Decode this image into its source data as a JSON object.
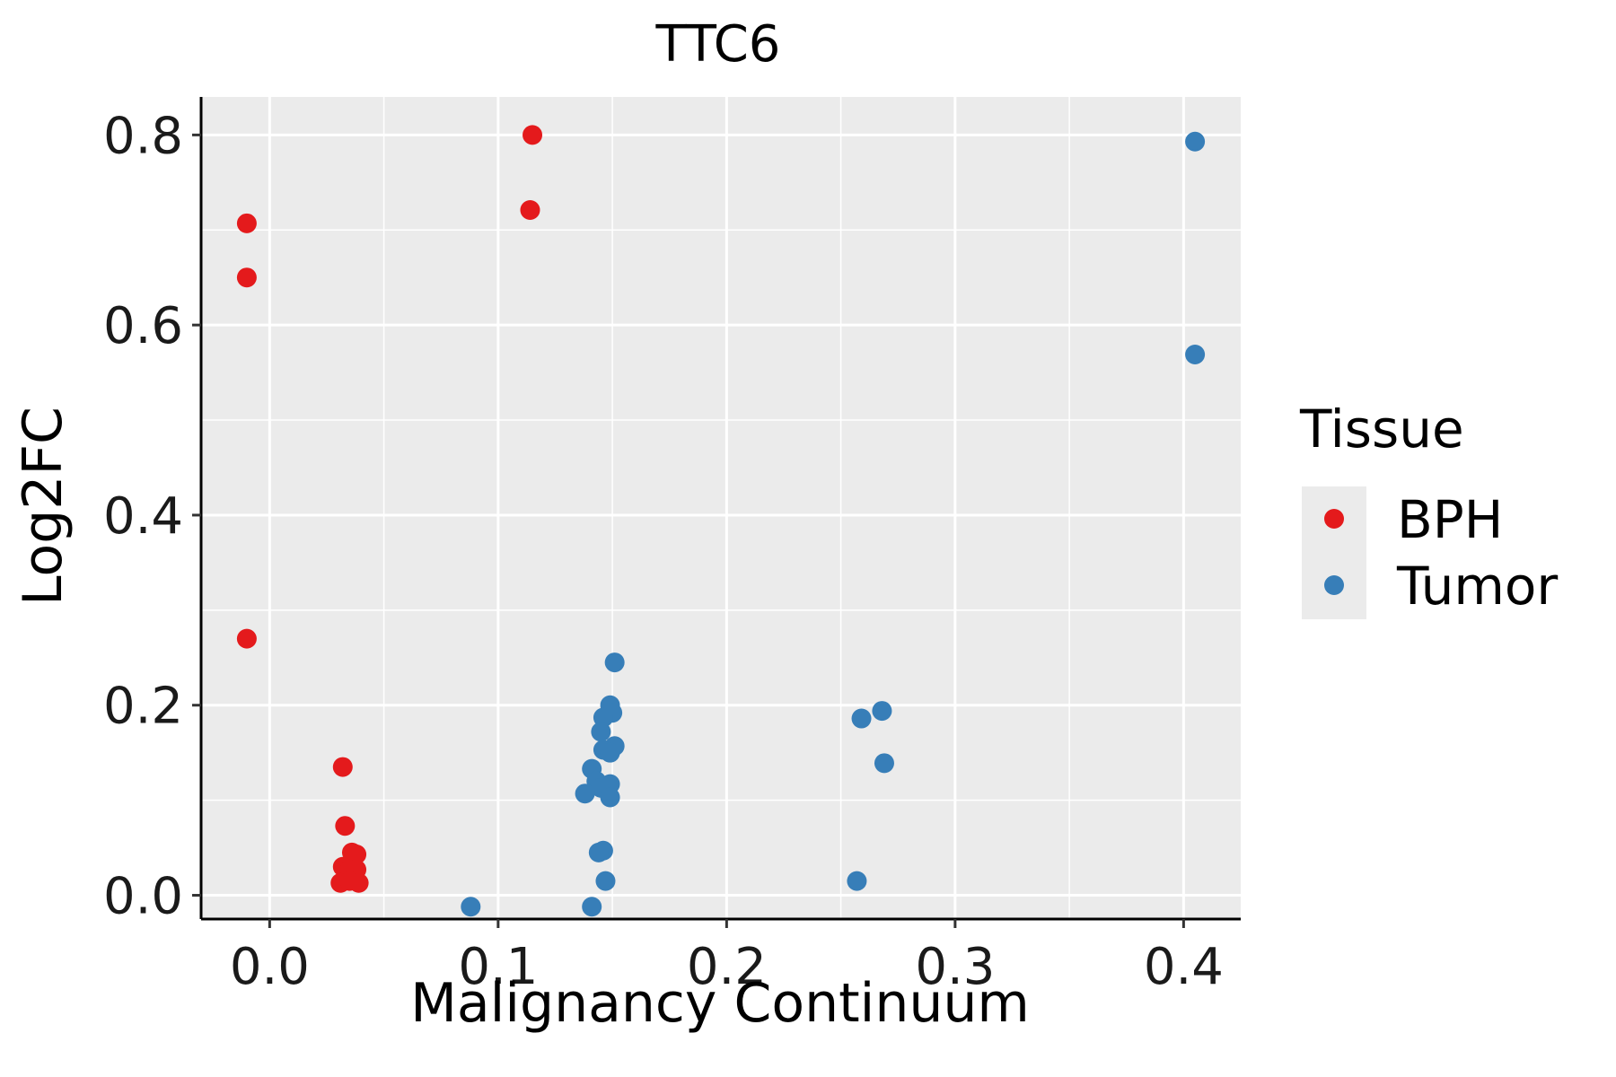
{
  "chart_data": {
    "type": "scatter",
    "title": "TTC6",
    "xlabel": "Malignancy Continuum",
    "ylabel": "Log2FC",
    "xlim": [
      -0.03,
      0.425
    ],
    "ylim": [
      -0.025,
      0.84
    ],
    "x_ticks": [
      0.0,
      0.1,
      0.2,
      0.3,
      0.4
    ],
    "x_tick_labels": [
      "0.0",
      "0.1",
      "0.2",
      "0.3",
      "0.4"
    ],
    "y_ticks": [
      0.0,
      0.2,
      0.4,
      0.6,
      0.8
    ],
    "y_tick_labels": [
      "0.0",
      "0.2",
      "0.4",
      "0.6",
      "0.8"
    ],
    "grid": true,
    "legend": {
      "title": "Tissue",
      "position": "right",
      "entries": [
        "BPH",
        "Tumor"
      ]
    },
    "series": [
      {
        "name": "BPH",
        "color": "#E41A1C",
        "points": [
          {
            "x": -0.01,
            "y": 0.707
          },
          {
            "x": -0.01,
            "y": 0.65
          },
          {
            "x": -0.01,
            "y": 0.27
          },
          {
            "x": 0.115,
            "y": 0.8
          },
          {
            "x": 0.114,
            "y": 0.721
          },
          {
            "x": 0.032,
            "y": 0.135
          },
          {
            "x": 0.033,
            "y": 0.073
          },
          {
            "x": 0.036,
            "y": 0.045
          },
          {
            "x": 0.038,
            "y": 0.043
          },
          {
            "x": 0.032,
            "y": 0.03
          },
          {
            "x": 0.035,
            "y": 0.027
          },
          {
            "x": 0.038,
            "y": 0.027
          },
          {
            "x": 0.031,
            "y": 0.013
          },
          {
            "x": 0.035,
            "y": 0.015
          },
          {
            "x": 0.039,
            "y": 0.013
          }
        ]
      },
      {
        "name": "Tumor",
        "color": "#377EB8",
        "points": [
          {
            "x": 0.405,
            "y": 0.793
          },
          {
            "x": 0.405,
            "y": 0.569
          },
          {
            "x": 0.151,
            "y": 0.245
          },
          {
            "x": 0.149,
            "y": 0.2
          },
          {
            "x": 0.15,
            "y": 0.192
          },
          {
            "x": 0.146,
            "y": 0.187
          },
          {
            "x": 0.145,
            "y": 0.172
          },
          {
            "x": 0.151,
            "y": 0.157
          },
          {
            "x": 0.146,
            "y": 0.153
          },
          {
            "x": 0.149,
            "y": 0.15
          },
          {
            "x": 0.141,
            "y": 0.133
          },
          {
            "x": 0.143,
            "y": 0.12
          },
          {
            "x": 0.149,
            "y": 0.117
          },
          {
            "x": 0.145,
            "y": 0.113
          },
          {
            "x": 0.138,
            "y": 0.107
          },
          {
            "x": 0.149,
            "y": 0.103
          },
          {
            "x": 0.146,
            "y": 0.047
          },
          {
            "x": 0.144,
            "y": 0.045
          },
          {
            "x": 0.147,
            "y": 0.015
          },
          {
            "x": 0.088,
            "y": -0.012
          },
          {
            "x": 0.141,
            "y": -0.012
          },
          {
            "x": 0.268,
            "y": 0.194
          },
          {
            "x": 0.259,
            "y": 0.186
          },
          {
            "x": 0.269,
            "y": 0.139
          },
          {
            "x": 0.257,
            "y": 0.015
          }
        ]
      }
    ]
  }
}
